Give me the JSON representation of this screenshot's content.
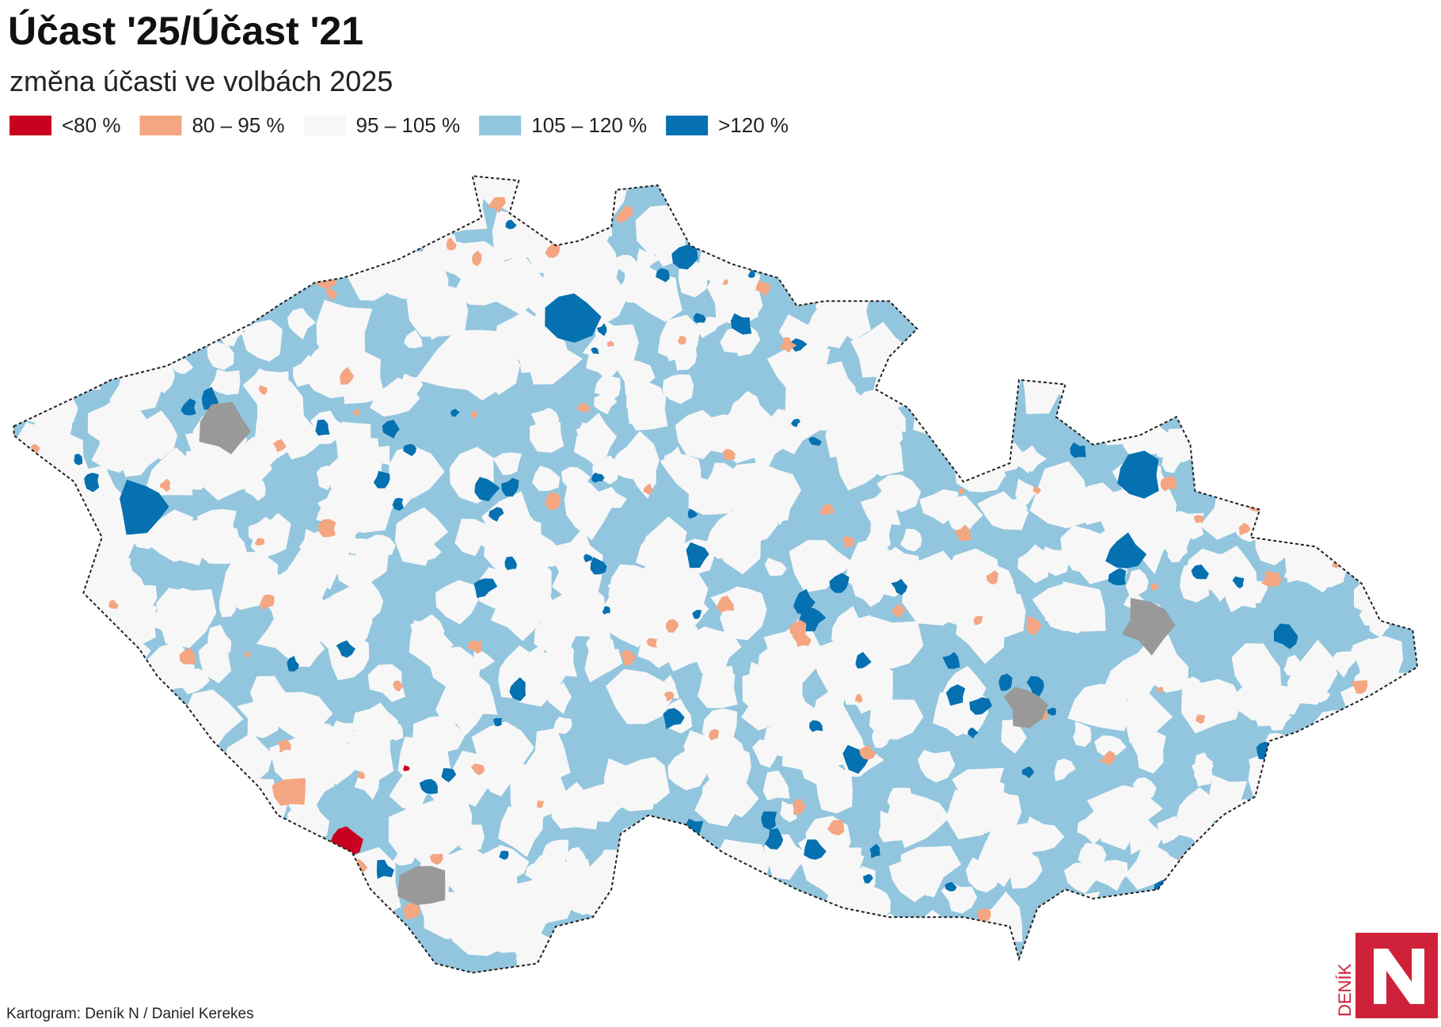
{
  "header": {
    "title": "Účast '25/Účast '21",
    "subtitle": "změna účasti ve volbách 2025"
  },
  "legend": {
    "items": [
      {
        "label": "<80 %",
        "color": "#ca0020"
      },
      {
        "label": "80 – 95 %",
        "color": "#f4a582"
      },
      {
        "label": "95 – 105 %",
        "color": "#f7f7f7"
      },
      {
        "label": "105 – 120 %",
        "color": "#92c5de"
      },
      {
        "label": ">120 %",
        "color": "#0571b0"
      }
    ]
  },
  "footer": {
    "credit": "Kartogram: Deník N / Daniel Kerekes",
    "logo": "DENÍK"
  }
}
